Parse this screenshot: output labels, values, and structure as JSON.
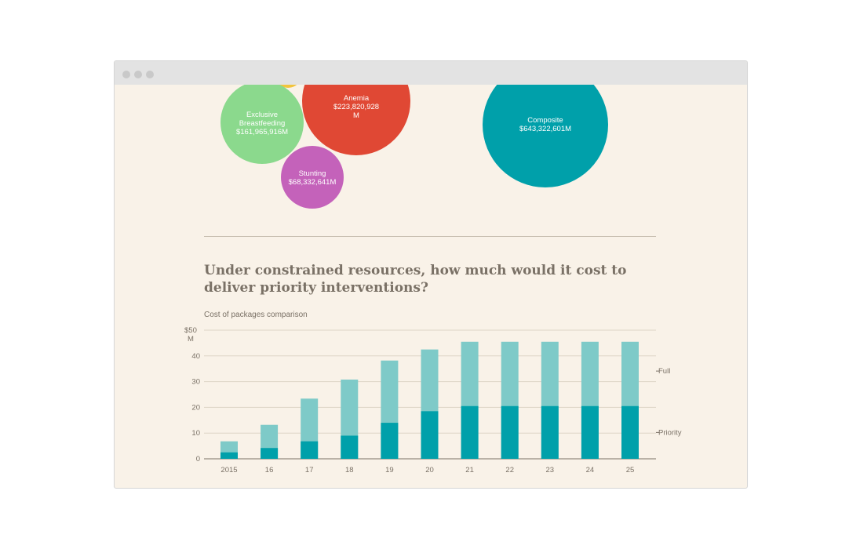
{
  "bubbles": [
    {
      "name": "Exclusive",
      "name2": "Breastfeeding",
      "value": "$161,965,916M",
      "color": "#8bd98d"
    },
    {
      "name": "Anemia",
      "value": "$223,820,928",
      "value2": "M",
      "color": "#e04834"
    },
    {
      "name": "Stunting",
      "value": "$68,332,641M",
      "color": "#c462ba"
    },
    {
      "name": "Composite",
      "value": "$643,322,601M",
      "color": "#00a0aa"
    },
    {
      "color": "#f2c43c"
    }
  ],
  "heading": "Under constrained resources, how much would it cost to deliver priority interventions?",
  "chart_data": {
    "type": "bar",
    "title": "Cost of packages comparison",
    "categories": [
      "2015",
      "16",
      "17",
      "18",
      "19",
      "20",
      "21",
      "22",
      "23",
      "24",
      "25"
    ],
    "series": [
      {
        "name": "Priority",
        "values": [
          2.5,
          4.2,
          6.8,
          9,
          14,
          18.5,
          20.5,
          20.5,
          20.5,
          20.5,
          20.5
        ],
        "color": "#00a0aa"
      },
      {
        "name": "Full",
        "values": [
          6.8,
          13.2,
          23.4,
          30.8,
          38.2,
          42.5,
          45.5,
          45.5,
          45.5,
          45.5,
          45.5
        ],
        "color": "#7ecac8"
      }
    ],
    "y_ticks": [
      "0",
      "10",
      "20",
      "30",
      "40"
    ],
    "y_top_label": "$50",
    "y_top_unit": "M",
    "ylim": [
      0,
      50
    ],
    "stacked": "overlay",
    "legend": "right, inline labels",
    "grid": true
  }
}
